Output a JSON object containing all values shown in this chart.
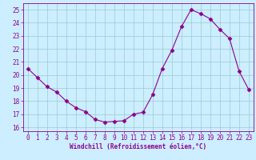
{
  "x": [
    0,
    1,
    2,
    3,
    4,
    5,
    6,
    7,
    8,
    9,
    10,
    11,
    12,
    13,
    14,
    15,
    16,
    17,
    18,
    19,
    20,
    21,
    22,
    23
  ],
  "y": [
    20.5,
    19.8,
    19.1,
    18.7,
    18.0,
    17.5,
    17.2,
    16.6,
    16.4,
    16.45,
    16.5,
    17.0,
    17.15,
    18.5,
    20.5,
    21.9,
    23.7,
    25.0,
    24.7,
    24.3,
    23.5,
    22.8,
    20.3,
    18.9
  ],
  "line_color": "#8b008b",
  "marker": "D",
  "marker_size": 2.5,
  "bg_color": "#cceeff",
  "grid_color": "#99cccc",
  "xlabel": "Windchill (Refroidissement éolien,°C)",
  "ylim": [
    15.7,
    25.5
  ],
  "xlim": [
    -0.5,
    23.5
  ],
  "yticks": [
    16,
    17,
    18,
    19,
    20,
    21,
    22,
    23,
    24,
    25
  ],
  "xticks": [
    0,
    1,
    2,
    3,
    4,
    5,
    6,
    7,
    8,
    9,
    10,
    11,
    12,
    13,
    14,
    15,
    16,
    17,
    18,
    19,
    20,
    21,
    22,
    23
  ]
}
